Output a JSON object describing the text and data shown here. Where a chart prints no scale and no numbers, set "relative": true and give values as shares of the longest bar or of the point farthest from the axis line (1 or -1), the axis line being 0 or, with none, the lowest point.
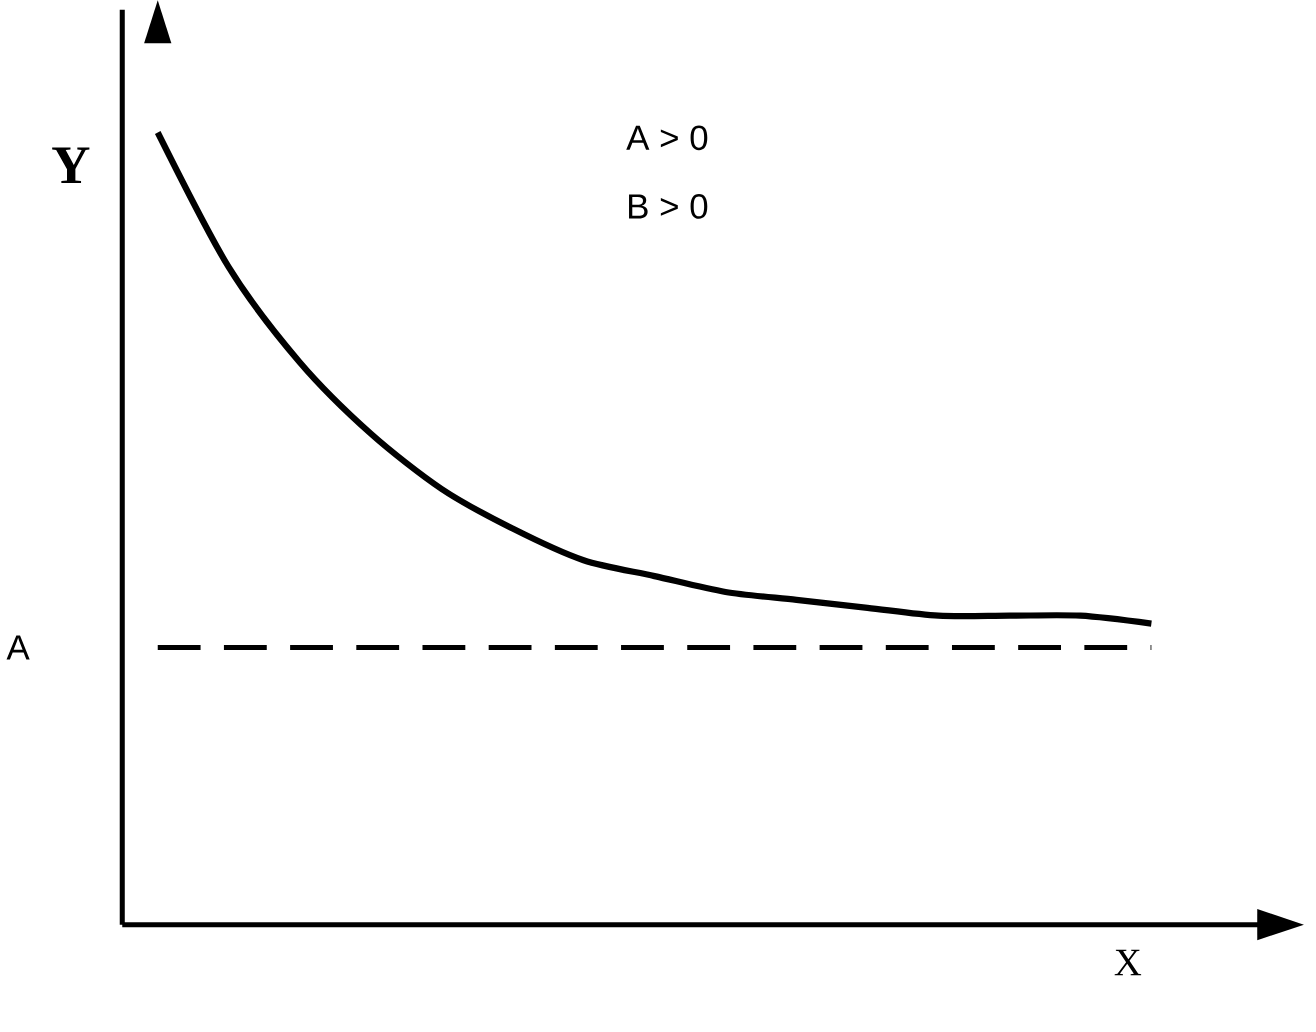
{
  "chart_data": {
    "type": "line",
    "relative": true,
    "xlabel": "X",
    "ylabel": "Y",
    "categories": [
      null,
      null,
      null,
      null,
      null,
      null,
      null,
      null,
      null,
      null,
      null,
      null,
      null,
      null,
      null
    ],
    "series": [
      {
        "color": "#000000",
        "line_style": "solid",
        "marker": "none",
        "values": [
          1.0,
          0.83,
          0.71,
          0.62,
          0.55,
          0.5,
          0.46,
          0.44,
          0.42,
          0.41,
          0.4,
          0.39,
          0.39,
          0.39,
          0.38
        ]
      }
    ],
    "ref_lines": [
      {
        "axis": "y",
        "value": 0.35,
        "label": "A",
        "color": "#000000",
        "line_style": "dashed"
      }
    ],
    "annotations": [
      "A  >  0",
      "B  >  0"
    ]
  }
}
